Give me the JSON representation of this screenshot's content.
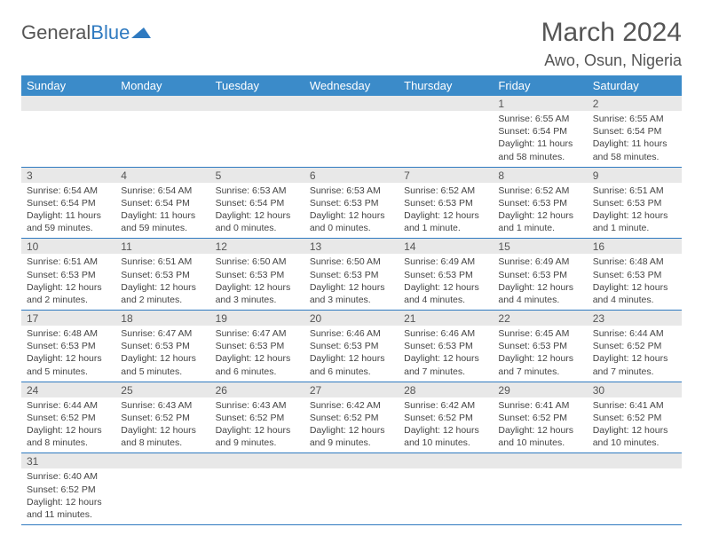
{
  "logo": {
    "general": "General",
    "blue": "Blue"
  },
  "header": {
    "month_title": "March 2024",
    "location": "Awo, Osun, Nigeria"
  },
  "colors": {
    "header_bg": "#3b8bc9",
    "header_text": "#ffffff",
    "daynum_bg": "#e8e8e8",
    "border": "#2f7ac0",
    "body_text": "#444444",
    "title_text": "#555555",
    "logo_blue": "#2f7ac0"
  },
  "weekdays": [
    "Sunday",
    "Monday",
    "Tuesday",
    "Wednesday",
    "Thursday",
    "Friday",
    "Saturday"
  ],
  "weeks": [
    [
      {
        "n": "",
        "sr": "",
        "ss": "",
        "dl": ""
      },
      {
        "n": "",
        "sr": "",
        "ss": "",
        "dl": ""
      },
      {
        "n": "",
        "sr": "",
        "ss": "",
        "dl": ""
      },
      {
        "n": "",
        "sr": "",
        "ss": "",
        "dl": ""
      },
      {
        "n": "",
        "sr": "",
        "ss": "",
        "dl": ""
      },
      {
        "n": "1",
        "sr": "Sunrise: 6:55 AM",
        "ss": "Sunset: 6:54 PM",
        "dl": "Daylight: 11 hours and 58 minutes."
      },
      {
        "n": "2",
        "sr": "Sunrise: 6:55 AM",
        "ss": "Sunset: 6:54 PM",
        "dl": "Daylight: 11 hours and 58 minutes."
      }
    ],
    [
      {
        "n": "3",
        "sr": "Sunrise: 6:54 AM",
        "ss": "Sunset: 6:54 PM",
        "dl": "Daylight: 11 hours and 59 minutes."
      },
      {
        "n": "4",
        "sr": "Sunrise: 6:54 AM",
        "ss": "Sunset: 6:54 PM",
        "dl": "Daylight: 11 hours and 59 minutes."
      },
      {
        "n": "5",
        "sr": "Sunrise: 6:53 AM",
        "ss": "Sunset: 6:54 PM",
        "dl": "Daylight: 12 hours and 0 minutes."
      },
      {
        "n": "6",
        "sr": "Sunrise: 6:53 AM",
        "ss": "Sunset: 6:53 PM",
        "dl": "Daylight: 12 hours and 0 minutes."
      },
      {
        "n": "7",
        "sr": "Sunrise: 6:52 AM",
        "ss": "Sunset: 6:53 PM",
        "dl": "Daylight: 12 hours and 1 minute."
      },
      {
        "n": "8",
        "sr": "Sunrise: 6:52 AM",
        "ss": "Sunset: 6:53 PM",
        "dl": "Daylight: 12 hours and 1 minute."
      },
      {
        "n": "9",
        "sr": "Sunrise: 6:51 AM",
        "ss": "Sunset: 6:53 PM",
        "dl": "Daylight: 12 hours and 1 minute."
      }
    ],
    [
      {
        "n": "10",
        "sr": "Sunrise: 6:51 AM",
        "ss": "Sunset: 6:53 PM",
        "dl": "Daylight: 12 hours and 2 minutes."
      },
      {
        "n": "11",
        "sr": "Sunrise: 6:51 AM",
        "ss": "Sunset: 6:53 PM",
        "dl": "Daylight: 12 hours and 2 minutes."
      },
      {
        "n": "12",
        "sr": "Sunrise: 6:50 AM",
        "ss": "Sunset: 6:53 PM",
        "dl": "Daylight: 12 hours and 3 minutes."
      },
      {
        "n": "13",
        "sr": "Sunrise: 6:50 AM",
        "ss": "Sunset: 6:53 PM",
        "dl": "Daylight: 12 hours and 3 minutes."
      },
      {
        "n": "14",
        "sr": "Sunrise: 6:49 AM",
        "ss": "Sunset: 6:53 PM",
        "dl": "Daylight: 12 hours and 4 minutes."
      },
      {
        "n": "15",
        "sr": "Sunrise: 6:49 AM",
        "ss": "Sunset: 6:53 PM",
        "dl": "Daylight: 12 hours and 4 minutes."
      },
      {
        "n": "16",
        "sr": "Sunrise: 6:48 AM",
        "ss": "Sunset: 6:53 PM",
        "dl": "Daylight: 12 hours and 4 minutes."
      }
    ],
    [
      {
        "n": "17",
        "sr": "Sunrise: 6:48 AM",
        "ss": "Sunset: 6:53 PM",
        "dl": "Daylight: 12 hours and 5 minutes."
      },
      {
        "n": "18",
        "sr": "Sunrise: 6:47 AM",
        "ss": "Sunset: 6:53 PM",
        "dl": "Daylight: 12 hours and 5 minutes."
      },
      {
        "n": "19",
        "sr": "Sunrise: 6:47 AM",
        "ss": "Sunset: 6:53 PM",
        "dl": "Daylight: 12 hours and 6 minutes."
      },
      {
        "n": "20",
        "sr": "Sunrise: 6:46 AM",
        "ss": "Sunset: 6:53 PM",
        "dl": "Daylight: 12 hours and 6 minutes."
      },
      {
        "n": "21",
        "sr": "Sunrise: 6:46 AM",
        "ss": "Sunset: 6:53 PM",
        "dl": "Daylight: 12 hours and 7 minutes."
      },
      {
        "n": "22",
        "sr": "Sunrise: 6:45 AM",
        "ss": "Sunset: 6:53 PM",
        "dl": "Daylight: 12 hours and 7 minutes."
      },
      {
        "n": "23",
        "sr": "Sunrise: 6:44 AM",
        "ss": "Sunset: 6:52 PM",
        "dl": "Daylight: 12 hours and 7 minutes."
      }
    ],
    [
      {
        "n": "24",
        "sr": "Sunrise: 6:44 AM",
        "ss": "Sunset: 6:52 PM",
        "dl": "Daylight: 12 hours and 8 minutes."
      },
      {
        "n": "25",
        "sr": "Sunrise: 6:43 AM",
        "ss": "Sunset: 6:52 PM",
        "dl": "Daylight: 12 hours and 8 minutes."
      },
      {
        "n": "26",
        "sr": "Sunrise: 6:43 AM",
        "ss": "Sunset: 6:52 PM",
        "dl": "Daylight: 12 hours and 9 minutes."
      },
      {
        "n": "27",
        "sr": "Sunrise: 6:42 AM",
        "ss": "Sunset: 6:52 PM",
        "dl": "Daylight: 12 hours and 9 minutes."
      },
      {
        "n": "28",
        "sr": "Sunrise: 6:42 AM",
        "ss": "Sunset: 6:52 PM",
        "dl": "Daylight: 12 hours and 10 minutes."
      },
      {
        "n": "29",
        "sr": "Sunrise: 6:41 AM",
        "ss": "Sunset: 6:52 PM",
        "dl": "Daylight: 12 hours and 10 minutes."
      },
      {
        "n": "30",
        "sr": "Sunrise: 6:41 AM",
        "ss": "Sunset: 6:52 PM",
        "dl": "Daylight: 12 hours and 10 minutes."
      }
    ],
    [
      {
        "n": "31",
        "sr": "Sunrise: 6:40 AM",
        "ss": "Sunset: 6:52 PM",
        "dl": "Daylight: 12 hours and 11 minutes."
      },
      {
        "n": "",
        "sr": "",
        "ss": "",
        "dl": ""
      },
      {
        "n": "",
        "sr": "",
        "ss": "",
        "dl": ""
      },
      {
        "n": "",
        "sr": "",
        "ss": "",
        "dl": ""
      },
      {
        "n": "",
        "sr": "",
        "ss": "",
        "dl": ""
      },
      {
        "n": "",
        "sr": "",
        "ss": "",
        "dl": ""
      },
      {
        "n": "",
        "sr": "",
        "ss": "",
        "dl": ""
      }
    ]
  ]
}
